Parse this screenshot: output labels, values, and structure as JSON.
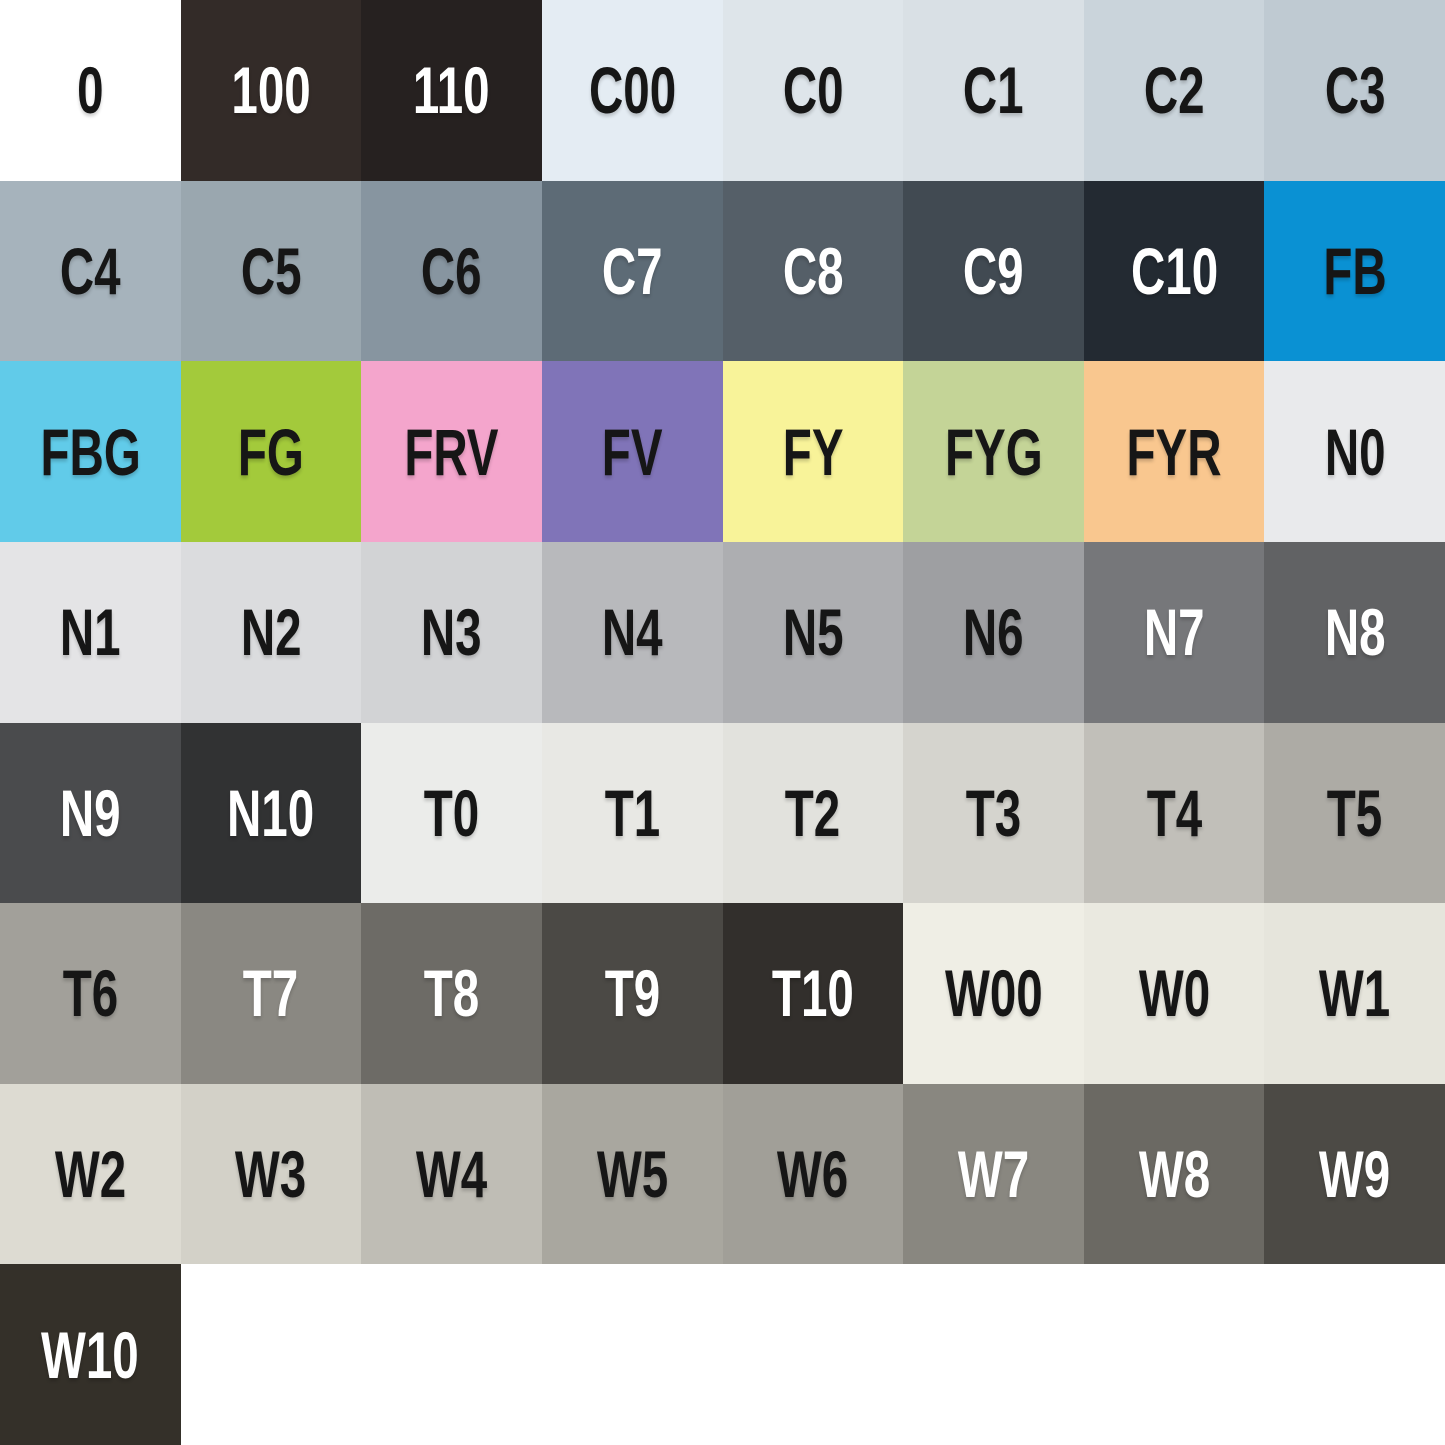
{
  "chart_data": {
    "type": "table",
    "description": "Color swatch chart grid of marker color codes",
    "grid": {
      "columns": 8,
      "rows": 8
    },
    "swatches": [
      {
        "label": "0",
        "bg": "#ffffff",
        "fg": "#161616"
      },
      {
        "label": "100",
        "bg": "#332b28",
        "fg": "#ffffff"
      },
      {
        "label": "110",
        "bg": "#262120",
        "fg": "#ffffff"
      },
      {
        "label": "C00",
        "bg": "#e4ecf3",
        "fg": "#161616"
      },
      {
        "label": "C0",
        "bg": "#dee5ea",
        "fg": "#161616"
      },
      {
        "label": "C1",
        "bg": "#d9e0e5",
        "fg": "#161616"
      },
      {
        "label": "C2",
        "bg": "#cad4db",
        "fg": "#161616"
      },
      {
        "label": "C3",
        "bg": "#bfcad2",
        "fg": "#161616"
      },
      {
        "label": "C4",
        "bg": "#a6b3bc",
        "fg": "#161616"
      },
      {
        "label": "C5",
        "bg": "#9aa7af",
        "fg": "#161616"
      },
      {
        "label": "C6",
        "bg": "#8795a0",
        "fg": "#161616"
      },
      {
        "label": "C7",
        "bg": "#5d6b76",
        "fg": "#ffffff"
      },
      {
        "label": "C8",
        "bg": "#555f68",
        "fg": "#ffffff"
      },
      {
        "label": "C9",
        "bg": "#414a52",
        "fg": "#ffffff"
      },
      {
        "label": "C10",
        "bg": "#232a32",
        "fg": "#ffffff"
      },
      {
        "label": "FB",
        "bg": "#0a91d3",
        "fg": "#161616"
      },
      {
        "label": "FBG",
        "bg": "#61cbe9",
        "fg": "#161616"
      },
      {
        "label": "FG",
        "bg": "#a3ca3b",
        "fg": "#161616"
      },
      {
        "label": "FRV",
        "bg": "#f4a5cc",
        "fg": "#161616"
      },
      {
        "label": "FV",
        "bg": "#8074b8",
        "fg": "#161616"
      },
      {
        "label": "FY",
        "bg": "#f8f399",
        "fg": "#161616"
      },
      {
        "label": "FYG",
        "bg": "#c4d497",
        "fg": "#161616"
      },
      {
        "label": "FYR",
        "bg": "#f9c78f",
        "fg": "#161616"
      },
      {
        "label": "N0",
        "bg": "#e9eaec",
        "fg": "#161616"
      },
      {
        "label": "N1",
        "bg": "#e4e4e6",
        "fg": "#161616"
      },
      {
        "label": "N2",
        "bg": "#dbdcde",
        "fg": "#161616"
      },
      {
        "label": "N3",
        "bg": "#d2d3d5",
        "fg": "#161616"
      },
      {
        "label": "N4",
        "bg": "#b8b9bc",
        "fg": "#161616"
      },
      {
        "label": "N5",
        "bg": "#adaeb1",
        "fg": "#161616"
      },
      {
        "label": "N6",
        "bg": "#9e9fa2",
        "fg": "#161616"
      },
      {
        "label": "N7",
        "bg": "#76777a",
        "fg": "#ffffff"
      },
      {
        "label": "N8",
        "bg": "#616264",
        "fg": "#ffffff"
      },
      {
        "label": "N9",
        "bg": "#4a4b4d",
        "fg": "#ffffff"
      },
      {
        "label": "N10",
        "bg": "#313233",
        "fg": "#ffffff"
      },
      {
        "label": "T0",
        "bg": "#ebecea",
        "fg": "#161616"
      },
      {
        "label": "T1",
        "bg": "#e8e8e4",
        "fg": "#161616"
      },
      {
        "label": "T2",
        "bg": "#e2e2dd",
        "fg": "#161616"
      },
      {
        "label": "T3",
        "bg": "#d5d4ce",
        "fg": "#161616"
      },
      {
        "label": "T4",
        "bg": "#c1bfb9",
        "fg": "#161616"
      },
      {
        "label": "T5",
        "bg": "#adaba5",
        "fg": "#161616"
      },
      {
        "label": "T6",
        "bg": "#a2a09a",
        "fg": "#161616"
      },
      {
        "label": "T7",
        "bg": "#8a8882",
        "fg": "#ffffff"
      },
      {
        "label": "T8",
        "bg": "#6d6b66",
        "fg": "#ffffff"
      },
      {
        "label": "T9",
        "bg": "#4b4945",
        "fg": "#ffffff"
      },
      {
        "label": "T10",
        "bg": "#322f2c",
        "fg": "#ffffff"
      },
      {
        "label": "W00",
        "bg": "#efeee5",
        "fg": "#161616"
      },
      {
        "label": "W0",
        "bg": "#eae9e0",
        "fg": "#161616"
      },
      {
        "label": "W1",
        "bg": "#e6e5dc",
        "fg": "#161616"
      },
      {
        "label": "W2",
        "bg": "#dddbd2",
        "fg": "#161616"
      },
      {
        "label": "W3",
        "bg": "#d3d1c8",
        "fg": "#161616"
      },
      {
        "label": "W4",
        "bg": "#bfbdb5",
        "fg": "#161616"
      },
      {
        "label": "W5",
        "bg": "#a9a79f",
        "fg": "#161616"
      },
      {
        "label": "W6",
        "bg": "#a19f98",
        "fg": "#161616"
      },
      {
        "label": "W7",
        "bg": "#898780",
        "fg": "#ffffff"
      },
      {
        "label": "W8",
        "bg": "#6b6963",
        "fg": "#ffffff"
      },
      {
        "label": "W9",
        "bg": "#4c4a45",
        "fg": "#ffffff"
      },
      {
        "label": "W10",
        "bg": "#343029",
        "fg": "#ffffff"
      }
    ]
  }
}
